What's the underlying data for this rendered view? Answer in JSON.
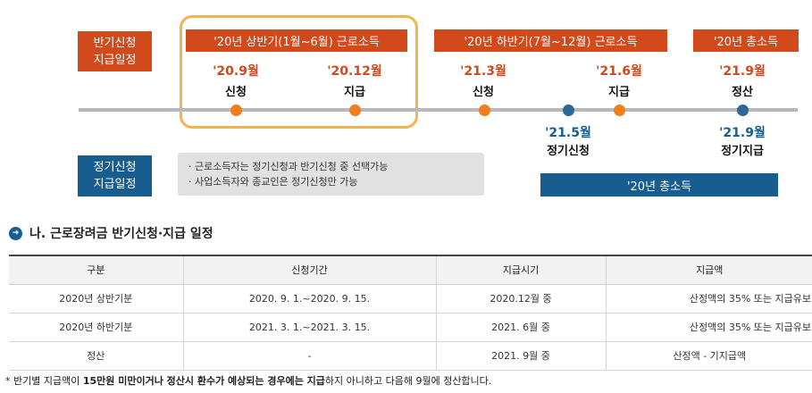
{
  "labels": {
    "half_apply": "반기신청\n지급일정",
    "regular_apply": "정기신청\n지급일정"
  },
  "periods": {
    "h1": "'20년 상반기(1월~6월) 근로소득",
    "h2": "'20년 하반기(7월~12월) 근로소득",
    "total": "'20년 총소득"
  },
  "events_top": [
    {
      "date": "'20.9월",
      "label": "신청"
    },
    {
      "date": "'20.12월",
      "label": "지급"
    },
    {
      "date": "'21.3월",
      "label": "신청"
    },
    {
      "date": "'21.6월",
      "label": "지급"
    },
    {
      "date": "'21.9월",
      "label": "정산"
    }
  ],
  "events_bottom": [
    {
      "date": "'21.5월",
      "label": "정기신청"
    },
    {
      "date": "'21.9월",
      "label": "정기지급"
    }
  ],
  "notes": [
    "· 근로소득자는 정기신청과 반기신청 중 선택가능",
    "· 사업소득자와 종교인은 정기신청만 가능"
  ],
  "total_bar": "'20년 총소득",
  "section_title": "나. 근로장려금 반기신청·지급 일정",
  "section_icon": "circle-arrow-right-icon",
  "table": {
    "headers": [
      "구분",
      "신청기간",
      "지급시기",
      "지급액"
    ],
    "rows": [
      [
        "2020년 상반기분",
        "2020. 9. 1.~2020. 9. 15.",
        "2020.12월 중",
        "산정액의 35% 또는 지급유보"
      ],
      [
        "2020년 하반기분",
        "2021. 3. 1.~2021. 3. 15.",
        "2021. 6월 중",
        "산정액의 35% 또는 지급유보"
      ],
      [
        "정산",
        "-",
        "2021. 9월 중",
        "산정액 - 기지급액"
      ]
    ]
  },
  "footnote": {
    "prefix": "* 반기별 지급액이 ",
    "bold1": "15만원 미만이거나 정산시 환수가 예상되는 경우에는 지급",
    "suffix": "하지 아니하고 다음해 9월에 정산합니다."
  },
  "colors": {
    "orange": "#d2491b",
    "blue": "#175d8f",
    "highlight": "#f7b24f"
  }
}
